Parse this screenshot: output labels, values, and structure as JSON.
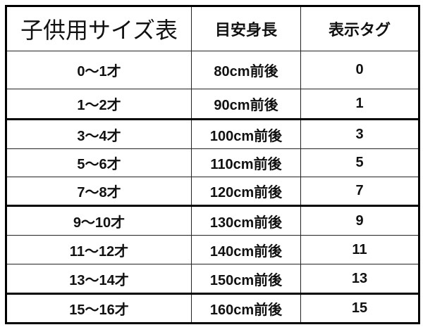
{
  "table": {
    "headers": [
      "子供用サイズ表",
      "目安身長",
      "表示タグ"
    ],
    "rows": [
      [
        "0～1才",
        "80cm前後",
        "0"
      ],
      [
        "1～2才",
        "90cm前後",
        "1"
      ],
      [
        "3～4才",
        "100cm前後",
        "3"
      ],
      [
        "5～6才",
        "110cm前後",
        "5"
      ],
      [
        "7～8才",
        "120cm前後",
        "7"
      ],
      [
        "9～10才",
        "130cm前後",
        "9"
      ],
      [
        "11～12才",
        "140cm前後",
        "11"
      ],
      [
        "13～14才",
        "150cm前後",
        "13"
      ],
      [
        "15～16才",
        "160cm前後",
        "15"
      ]
    ]
  }
}
